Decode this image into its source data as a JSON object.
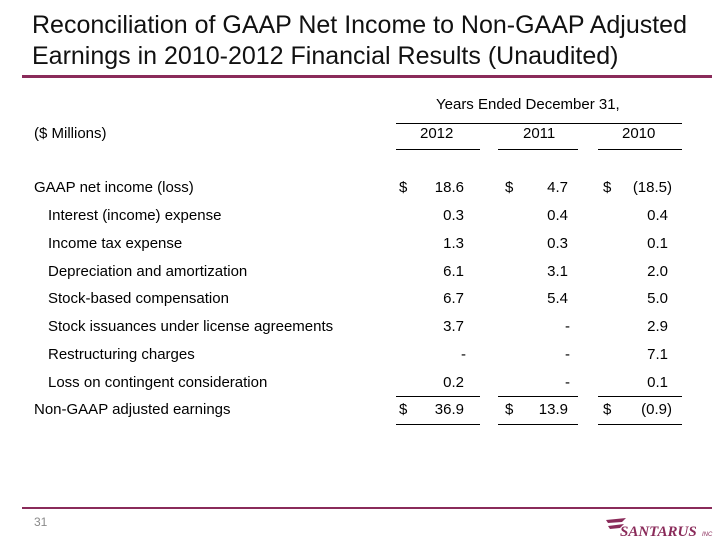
{
  "title": {
    "line1": "Reconciliation of GAAP Net Income to Non-GAAP Adjusted",
    "line2": "Earnings in 2010-2012 Financial Results (Unaudited)"
  },
  "table": {
    "period_header": "Years Ended December 31,",
    "units_label": "($ Millions)",
    "years": [
      "2012",
      "2011",
      "2010"
    ],
    "currency_symbol": "$",
    "rows": [
      {
        "label": "GAAP net income (loss)",
        "values": [
          "18.6",
          "4.7",
          "(18.5)"
        ]
      },
      {
        "label": "Interest (income) expense",
        "values": [
          "0.3",
          "0.4",
          "0.4"
        ]
      },
      {
        "label": "Income tax expense",
        "values": [
          "1.3",
          "0.3",
          "0.1"
        ]
      },
      {
        "label": "Depreciation and amortization",
        "values": [
          "6.1",
          "3.1",
          "2.0"
        ]
      },
      {
        "label": "Stock-based compensation",
        "values": [
          "6.7",
          "5.4",
          "5.0"
        ]
      },
      {
        "label": "Stock issuances under license agreements",
        "values": [
          "3.7",
          "-",
          "2.9"
        ]
      },
      {
        "label": "Restructuring charges",
        "values": [
          "-",
          "-",
          "7.1"
        ]
      },
      {
        "label": "Loss on contingent consideration",
        "values": [
          "0.2",
          "-",
          "0.1"
        ]
      }
    ],
    "total": {
      "label": "Non-GAAP adjusted earnings",
      "values": [
        "36.9",
        "13.9",
        "(0.9)"
      ]
    }
  },
  "footer": {
    "page_number": "31",
    "logo_text": "SANTARUS",
    "logo_suffix": "INC",
    "brand_color": "#8a2b5a"
  }
}
